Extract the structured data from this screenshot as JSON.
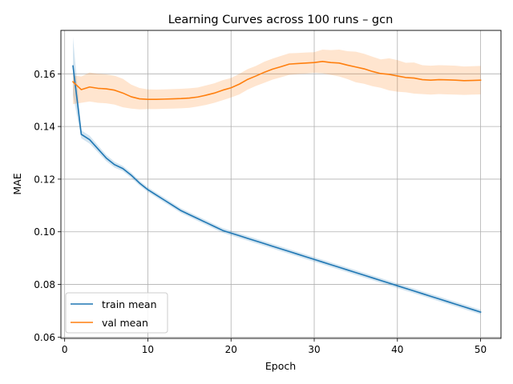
{
  "chart_data": {
    "type": "line",
    "title": "Learning Curves across 100 runs – gcn",
    "xlabel": "Epoch",
    "ylabel": "MAE",
    "xlim": [
      -0.45,
      52.45
    ],
    "ylim": [
      0.0595,
      0.1765
    ],
    "xticks": [
      0,
      10,
      20,
      30,
      40,
      50
    ],
    "xtick_labels": [
      "0",
      "10",
      "20",
      "30",
      "40",
      "50"
    ],
    "yticks": [
      0.06,
      0.08,
      0.1,
      0.12,
      0.14,
      0.16
    ],
    "ytick_labels": [
      "0.06",
      "0.08",
      "0.10",
      "0.12",
      "0.14",
      "0.16"
    ],
    "grid": true,
    "legend_position": "lower-left",
    "x": [
      1,
      2,
      3,
      4,
      5,
      6,
      7,
      8,
      9,
      10,
      11,
      12,
      13,
      14,
      15,
      16,
      17,
      18,
      19,
      20,
      21,
      22,
      23,
      24,
      25,
      26,
      27,
      28,
      29,
      30,
      31,
      32,
      33,
      34,
      35,
      36,
      37,
      38,
      39,
      40,
      41,
      42,
      43,
      44,
      45,
      46,
      47,
      48,
      49,
      50
    ],
    "series": [
      {
        "name": "train mean",
        "color": "#1f77b4",
        "values": [
          0.163,
          0.137,
          0.135,
          0.1315,
          0.128,
          0.1255,
          0.124,
          0.1215,
          0.1185,
          0.116,
          0.114,
          0.112,
          0.11,
          0.108,
          0.1065,
          0.105,
          0.1035,
          0.102,
          0.1005,
          0.0995,
          0.0985,
          0.0975,
          0.0965,
          0.0955,
          0.0945,
          0.0935,
          0.0925,
          0.0915,
          0.0905,
          0.0895,
          0.0885,
          0.0875,
          0.0865,
          0.0855,
          0.0845,
          0.0835,
          0.0825,
          0.0815,
          0.0805,
          0.0795,
          0.0785,
          0.0775,
          0.0765,
          0.0755,
          0.0745,
          0.0735,
          0.0725,
          0.0715,
          0.0705,
          0.0695
        ],
        "band_lower": [
          0.152,
          0.1355,
          0.1335,
          0.1302,
          0.1268,
          0.1244,
          0.123,
          0.1205,
          0.1176,
          0.1151,
          0.1131,
          0.1111,
          0.1091,
          0.1071,
          0.1056,
          0.1041,
          0.1026,
          0.1011,
          0.0996,
          0.0986,
          0.0976,
          0.0966,
          0.0956,
          0.0946,
          0.0936,
          0.0926,
          0.0916,
          0.0906,
          0.0896,
          0.0886,
          0.0876,
          0.0866,
          0.0856,
          0.0846,
          0.0836,
          0.0826,
          0.0816,
          0.0806,
          0.0796,
          0.0786,
          0.0776,
          0.0766,
          0.0756,
          0.0746,
          0.0736,
          0.0726,
          0.0716,
          0.0706,
          0.0696,
          0.0686
        ],
        "band_upper": [
          0.174,
          0.1385,
          0.1365,
          0.1328,
          0.1292,
          0.1266,
          0.125,
          0.1225,
          0.1194,
          0.1169,
          0.1149,
          0.1129,
          0.1109,
          0.1089,
          0.1074,
          0.1059,
          0.1044,
          0.1029,
          0.1014,
          0.1004,
          0.0994,
          0.0984,
          0.0974,
          0.0964,
          0.0954,
          0.0944,
          0.0934,
          0.0924,
          0.0914,
          0.0904,
          0.0894,
          0.0884,
          0.0874,
          0.0864,
          0.0854,
          0.0844,
          0.0834,
          0.0824,
          0.0814,
          0.0804,
          0.0794,
          0.0784,
          0.0774,
          0.0764,
          0.0754,
          0.0744,
          0.0734,
          0.0724,
          0.0714,
          0.0704
        ]
      },
      {
        "name": "val mean",
        "color": "#ff7f0e",
        "values": [
          0.157,
          0.154,
          0.155,
          0.1545,
          0.1543,
          0.1538,
          0.1527,
          0.1513,
          0.1505,
          0.1503,
          0.1503,
          0.1504,
          0.1505,
          0.1506,
          0.1508,
          0.1512,
          0.1519,
          0.1527,
          0.1538,
          0.1547,
          0.1561,
          0.1579,
          0.1592,
          0.1606,
          0.1618,
          0.1627,
          0.1637,
          0.1639,
          0.1641,
          0.1643,
          0.1647,
          0.1643,
          0.1641,
          0.1633,
          0.1626,
          0.1619,
          0.1609,
          0.1601,
          0.1598,
          0.1592,
          0.1586,
          0.1584,
          0.1578,
          0.1576,
          0.1578,
          0.1577,
          0.1576,
          0.1574,
          0.1575,
          0.1576
        ],
        "band_lower": [
          0.1485,
          0.149,
          0.1495,
          0.149,
          0.1488,
          0.1483,
          0.1473,
          0.1468,
          0.1465,
          0.1466,
          0.1466,
          0.1467,
          0.1468,
          0.1469,
          0.1471,
          0.1476,
          0.1482,
          0.149,
          0.15,
          0.151,
          0.1522,
          0.154,
          0.1554,
          0.1566,
          0.1578,
          0.1587,
          0.1596,
          0.1599,
          0.1601,
          0.1604,
          0.1602,
          0.1596,
          0.159,
          0.158,
          0.1568,
          0.1562,
          0.1553,
          0.1547,
          0.1537,
          0.1532,
          0.153,
          0.1525,
          0.1523,
          0.1521,
          0.1523,
          0.1522,
          0.1521,
          0.152,
          0.1521,
          0.1522
        ],
        "band_upper": [
          0.1595,
          0.159,
          0.1605,
          0.16,
          0.1598,
          0.1593,
          0.1581,
          0.1559,
          0.1546,
          0.1541,
          0.154,
          0.1541,
          0.1542,
          0.1543,
          0.1545,
          0.1548,
          0.1556,
          0.1564,
          0.1576,
          0.1584,
          0.16,
          0.1618,
          0.163,
          0.1646,
          0.1658,
          0.1668,
          0.1678,
          0.1679,
          0.1681,
          0.1682,
          0.1692,
          0.169,
          0.1692,
          0.1686,
          0.1684,
          0.1676,
          0.1665,
          0.1655,
          0.1659,
          0.1652,
          0.1642,
          0.1643,
          0.1633,
          0.1631,
          0.1633,
          0.1632,
          0.1631,
          0.1628,
          0.1629,
          0.163
        ]
      }
    ]
  }
}
